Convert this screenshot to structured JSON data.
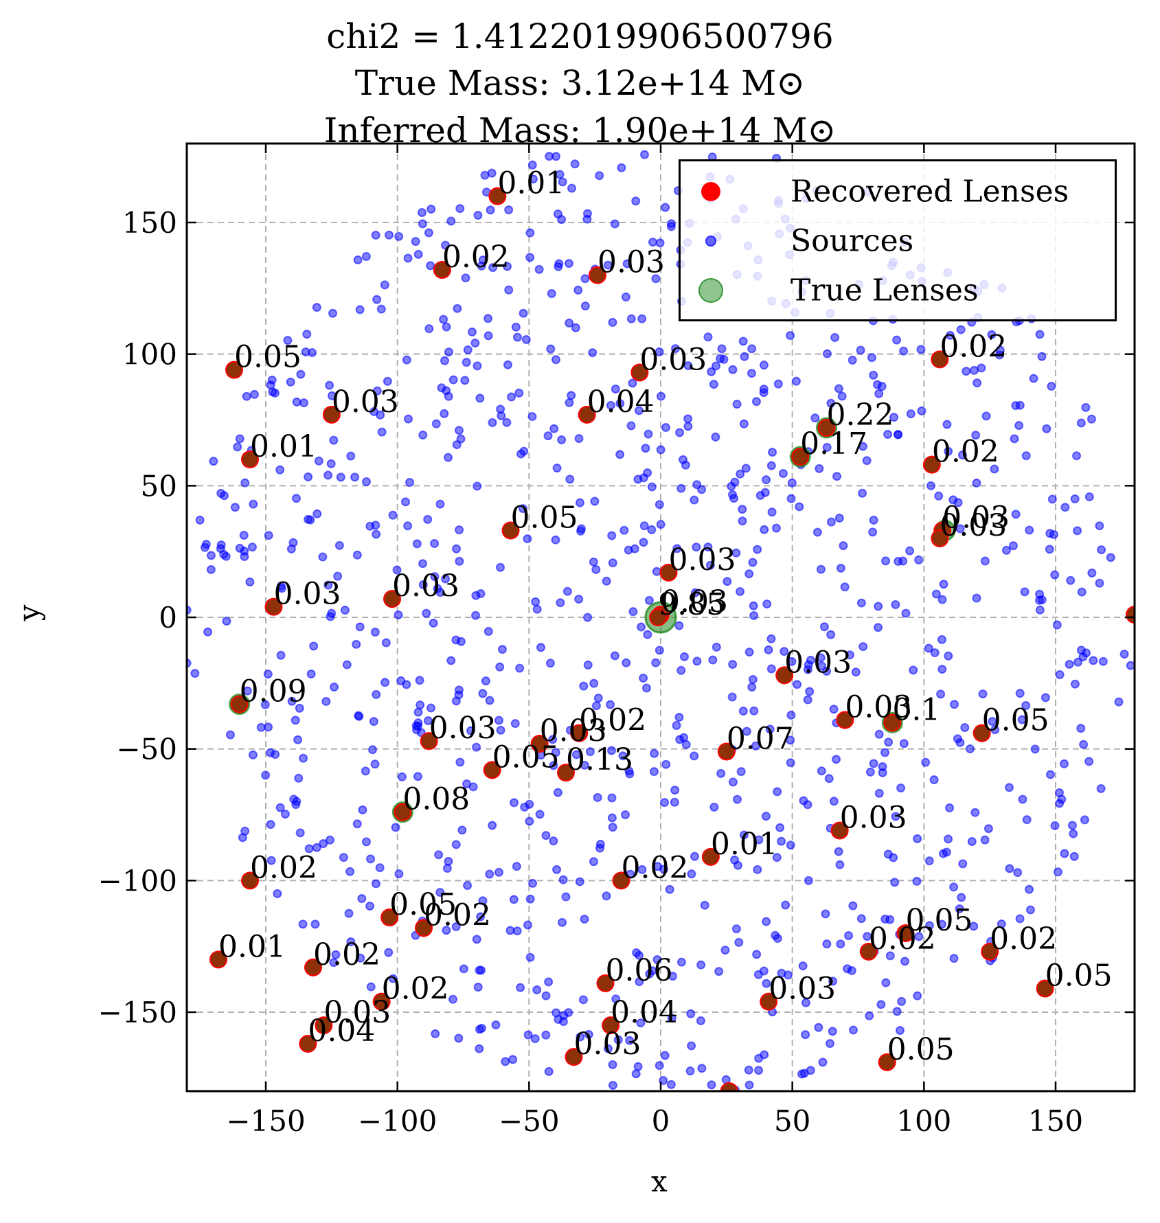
{
  "title_lines": [
    "chi2 = 1.4122019906500796",
    "True Mass: 3.12e+14 M⊙",
    "Inferred Mass: 1.90e+14 M⊙"
  ],
  "colors": {
    "recovered": "#ff0000",
    "sources": "#0000ff",
    "true": "#228b22",
    "grid": "#b0b0b0"
  },
  "legend": {
    "placement": "top-right",
    "items": [
      {
        "label": "Recovered Lenses",
        "color": "#ff0000",
        "kind": "recovered"
      },
      {
        "label": "Sources",
        "color": "#0000ff",
        "kind": "sources"
      },
      {
        "label": "True Lenses",
        "color": "#228b22",
        "kind": "true"
      }
    ]
  },
  "chart_data": {
    "type": "scatter",
    "xlabel": "x",
    "ylabel": "y",
    "xlim": [
      -180,
      180
    ],
    "ylim": [
      -180,
      180
    ],
    "xticks": [
      -150,
      -100,
      -50,
      0,
      50,
      100,
      150
    ],
    "yticks": [
      -150,
      -100,
      -50,
      0,
      50,
      100,
      150
    ],
    "tick_labels_x": [
      "−150",
      "−100",
      "−50",
      "0",
      "50",
      "100",
      "150"
    ],
    "tick_labels_y": [
      "−150",
      "−100",
      "−50",
      "0",
      "50",
      "100",
      "150"
    ],
    "grid": true,
    "lenses": [
      {
        "x": -62,
        "y": 160,
        "label": "0.01"
      },
      {
        "x": -83,
        "y": 132,
        "label": "0.02"
      },
      {
        "x": -24,
        "y": 130,
        "label": "0.03"
      },
      {
        "x": -162,
        "y": 94,
        "label": "0.05"
      },
      {
        "x": -125,
        "y": 77,
        "label": "0.03"
      },
      {
        "x": -8,
        "y": 93,
        "label": "0.03"
      },
      {
        "x": -28,
        "y": 77,
        "label": "0.04"
      },
      {
        "x": -156,
        "y": 60,
        "label": "0.01"
      },
      {
        "x": 106,
        "y": 98,
        "label": "0.02"
      },
      {
        "x": 63,
        "y": 72,
        "label": "0.22"
      },
      {
        "x": 53,
        "y": 61,
        "label": "0.17"
      },
      {
        "x": 103,
        "y": 58,
        "label": "0.02"
      },
      {
        "x": -57,
        "y": 33,
        "label": "0.05"
      },
      {
        "x": 107,
        "y": 33,
        "label": "0.03"
      },
      {
        "x": 106,
        "y": 30,
        "label": "0.03"
      },
      {
        "x": 3,
        "y": 17,
        "label": "0.03"
      },
      {
        "x": -147,
        "y": 4,
        "label": "0.03"
      },
      {
        "x": -102,
        "y": 7,
        "label": "0.03"
      },
      {
        "x": 0,
        "y": 1,
        "label": "0.03"
      },
      {
        "x": -1,
        "y": 0,
        "label": "9.85"
      },
      {
        "x": 180,
        "y": 1,
        "label": ""
      },
      {
        "x": 47,
        "y": -22,
        "label": "0.03"
      },
      {
        "x": -160,
        "y": -33,
        "label": "0.09"
      },
      {
        "x": 70,
        "y": -39,
        "label": "0.03"
      },
      {
        "x": 88,
        "y": -40,
        "label": "0.1"
      },
      {
        "x": 122,
        "y": -44,
        "label": "0.05"
      },
      {
        "x": -88,
        "y": -47,
        "label": "0.03"
      },
      {
        "x": -46,
        "y": -48,
        "label": "0.03"
      },
      {
        "x": -31,
        "y": -44,
        "label": "0.02"
      },
      {
        "x": 25,
        "y": -51,
        "label": "0.07"
      },
      {
        "x": -64,
        "y": -58,
        "label": "0.05"
      },
      {
        "x": -36,
        "y": -59,
        "label": "0.13"
      },
      {
        "x": -98,
        "y": -74,
        "label": "0.08"
      },
      {
        "x": 68,
        "y": -81,
        "label": "0.03"
      },
      {
        "x": 19,
        "y": -91,
        "label": "0.01"
      },
      {
        "x": -156,
        "y": -100,
        "label": "0.02"
      },
      {
        "x": -15,
        "y": -100,
        "label": "0.02"
      },
      {
        "x": -103,
        "y": -114,
        "label": "0.05"
      },
      {
        "x": -90,
        "y": -118,
        "label": "0.02"
      },
      {
        "x": 93,
        "y": -120,
        "label": "0.05"
      },
      {
        "x": -168,
        "y": -130,
        "label": "0.01"
      },
      {
        "x": 79,
        "y": -127,
        "label": "0.02"
      },
      {
        "x": 125,
        "y": -127,
        "label": "0.02"
      },
      {
        "x": -132,
        "y": -133,
        "label": "0.02"
      },
      {
        "x": -21,
        "y": -139,
        "label": "0.06"
      },
      {
        "x": 146,
        "y": -141,
        "label": "0.05"
      },
      {
        "x": -106,
        "y": -146,
        "label": "0.02"
      },
      {
        "x": 41,
        "y": -146,
        "label": "0.03"
      },
      {
        "x": -128,
        "y": -155,
        "label": "0.03"
      },
      {
        "x": -19,
        "y": -155,
        "label": "0.04"
      },
      {
        "x": -134,
        "y": -162,
        "label": "0.04"
      },
      {
        "x": -33,
        "y": -167,
        "label": "0.03"
      },
      {
        "x": 86,
        "y": -169,
        "label": "0.05"
      },
      {
        "x": 26,
        "y": -180,
        "label": ""
      }
    ],
    "true_lens_only": [
      {
        "x": 0,
        "y": 0,
        "size": "large"
      },
      {
        "x": 63,
        "y": 72,
        "size": "small"
      },
      {
        "x": 53,
        "y": 61,
        "size": "small"
      },
      {
        "x": 108,
        "y": 33,
        "size": "small"
      },
      {
        "x": -160,
        "y": -33,
        "size": "small"
      },
      {
        "x": 88,
        "y": -40,
        "size": "small"
      },
      {
        "x": -98,
        "y": -74,
        "size": "small"
      }
    ],
    "sources": {
      "count": 1000,
      "seed": 12345,
      "range": [
        -180,
        180
      ],
      "disk_radius": 180
    }
  }
}
